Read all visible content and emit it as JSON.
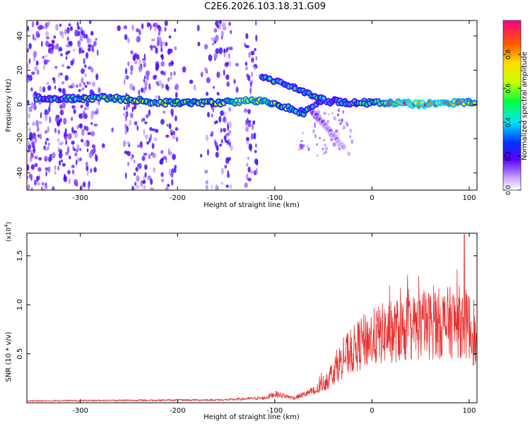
{
  "chart_data": [
    {
      "type": "heatmap",
      "title": "C2E6.2026.103.18.31.G09",
      "xlabel": "Height of straight line (km)",
      "ylabel": "Frequency (Hz)",
      "xlim": [
        -355,
        108
      ],
      "ylim": [
        -50,
        49
      ],
      "xticks": [
        -300,
        -200,
        -100,
        0,
        100
      ],
      "yticks": [
        40,
        20,
        0,
        -20,
        -40
      ],
      "colorbar": {
        "label": "Normalized spectral amplitude",
        "range": [
          0,
          1
        ],
        "ticks": [
          "0.0",
          "0.2",
          "0.4",
          "0.6",
          "0.8"
        ],
        "tick_values": [
          0.0,
          0.2,
          0.4,
          0.6,
          0.8
        ]
      },
      "features": {
        "noise_bands_km": [
          [
            -355,
            -282
          ],
          [
            -255,
            -200
          ],
          [
            -170,
            -145
          ],
          [
            -130,
            -118
          ]
        ],
        "main_signal": [
          {
            "x": -345,
            "y": 4,
            "a": 0.45
          },
          {
            "x": -330,
            "y": 3,
            "a": 0.4
          },
          {
            "x": -280,
            "y": 4,
            "a": 0.55
          },
          {
            "x": -250,
            "y": 3,
            "a": 0.6
          },
          {
            "x": -220,
            "y": 1,
            "a": 0.65
          },
          {
            "x": -190,
            "y": 1,
            "a": 0.55
          },
          {
            "x": -160,
            "y": 1,
            "a": 0.6
          },
          {
            "x": -130,
            "y": 2,
            "a": 0.75
          },
          {
            "x": -110,
            "y": 2,
            "a": 0.7
          },
          {
            "x": -95,
            "y": -1,
            "a": 0.6
          },
          {
            "x": -80,
            "y": -3,
            "a": 0.5
          },
          {
            "x": -70,
            "y": -5,
            "a": 0.45
          },
          {
            "x": -55,
            "y": 1,
            "a": 0.4
          },
          {
            "x": -40,
            "y": 2,
            "a": 0.4
          },
          {
            "x": -20,
            "y": 1,
            "a": 0.45
          },
          {
            "x": 0,
            "y": 1,
            "a": 0.6
          },
          {
            "x": 25,
            "y": 1,
            "a": 0.8
          },
          {
            "x": 50,
            "y": 0,
            "a": 0.9
          },
          {
            "x": 75,
            "y": 1,
            "a": 0.85
          },
          {
            "x": 105,
            "y": 1,
            "a": 0.7
          }
        ],
        "upper_branch": [
          {
            "x": -113,
            "y": 16,
            "a": 0.4
          },
          {
            "x": -95,
            "y": 13,
            "a": 0.45
          },
          {
            "x": -80,
            "y": 10,
            "a": 0.45
          },
          {
            "x": -65,
            "y": 6,
            "a": 0.5
          },
          {
            "x": -50,
            "y": 3,
            "a": 0.5
          }
        ],
        "lower_branch": [
          {
            "x": -60,
            "y": -5,
            "a": 0.2
          },
          {
            "x": -50,
            "y": -11,
            "a": 0.15
          },
          {
            "x": -40,
            "y": -18,
            "a": 0.12
          },
          {
            "x": -30,
            "y": -25,
            "a": 0.1
          }
        ]
      }
    },
    {
      "type": "line",
      "xlabel": "Height of straight line (km)",
      "ylabel": "SNR (10 * v/v)",
      "multiplier": "(x10⁴)",
      "multiplier_base": "(x10",
      "multiplier_exp": "4",
      "xlim": [
        -355,
        108
      ],
      "ylim": [
        0,
        1.73
      ],
      "xticks": [
        -300,
        -200,
        -100,
        0,
        100
      ],
      "yticks": [
        0.5,
        1.0,
        1.5
      ],
      "ytick_labels": [
        "0.5",
        "1.0",
        "1.5"
      ],
      "series": [
        {
          "name": "SNR",
          "color": "#e8302f",
          "envelope": [
            {
              "x": -355,
              "y": 0.02
            },
            {
              "x": -250,
              "y": 0.025
            },
            {
              "x": -150,
              "y": 0.03
            },
            {
              "x": -110,
              "y": 0.05
            },
            {
              "x": -100,
              "y": 0.09
            },
            {
              "x": -80,
              "y": 0.05
            },
            {
              "x": -60,
              "y": 0.12
            },
            {
              "x": -45,
              "y": 0.3
            },
            {
              "x": -30,
              "y": 0.55
            },
            {
              "x": -20,
              "y": 0.65
            },
            {
              "x": -10,
              "y": 0.75
            },
            {
              "x": 0,
              "y": 0.8
            },
            {
              "x": 10,
              "y": 0.85
            },
            {
              "x": 30,
              "y": 0.9
            },
            {
              "x": 50,
              "y": 0.95
            },
            {
              "x": 70,
              "y": 0.98
            },
            {
              "x": 90,
              "y": 1.0
            },
            {
              "x": 100,
              "y": 0.95
            },
            {
              "x": 108,
              "y": 0.7
            }
          ],
          "peak": {
            "x": 95,
            "y": 1.72
          }
        }
      ]
    }
  ]
}
